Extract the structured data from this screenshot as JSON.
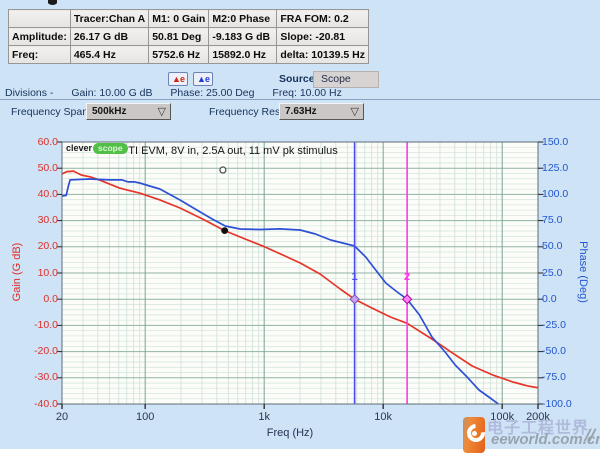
{
  "readout_table": {
    "header": [
      "",
      "Tracer:Chan A",
      "M1: 0 Gain",
      "M2:0 Phase",
      "FRA FOM: 0.2"
    ],
    "rows": [
      [
        "Amplitude:",
        "26.17 G dB",
        "50.81 Deg",
        "-9.183 G dB",
        "Slope: -20.81"
      ],
      [
        "Freq:",
        "465.4 Hz",
        "5752.6 Hz",
        "15892.0 Hz",
        "delta: 10139.5 Hz"
      ]
    ]
  },
  "toolbar": {
    "autoscale_gain": {
      "glyph": "▲e",
      "color": "#d42414"
    },
    "autoscale_phase": {
      "glyph": "▲e",
      "color": "#1f3fd0"
    },
    "source_label": "Source:",
    "source_value": "Scope"
  },
  "divisions": {
    "prefix": "Divisions -",
    "gain": "Gain: 10.00 G dB",
    "phase": "Phase: 25.00 Deg",
    "freq": "Freq: 10.00 Hz"
  },
  "controls": {
    "dropdown_icon": "▽",
    "freq_span": {
      "label": "Frequency Span",
      "value": "500kHz"
    },
    "freq_res": {
      "label": "Frequency Res",
      "value": "7.63Hz"
    }
  },
  "chart_data": {
    "type": "line",
    "title": "TI EVM, 8V in, 2.5A out, 11 mV pk stimulus",
    "logo": {
      "clever": "clever",
      "scope": "scope"
    },
    "x_scale": "log",
    "grid": true,
    "freq_axis": {
      "label": "Freq (Hz)",
      "min": 20,
      "max": 200000,
      "ticks": [
        {
          "f": 20,
          "label": "20"
        },
        {
          "f": 100,
          "label": "100"
        },
        {
          "f": 1000,
          "label": "1k"
        },
        {
          "f": 10000,
          "label": "10k"
        },
        {
          "f": 100000,
          "label": "100k"
        },
        {
          "f": 200000,
          "label": "200k"
        }
      ]
    },
    "gain_axis": {
      "label": "Gain (G dB)",
      "min": -40,
      "max": 60,
      "tick_step": 10,
      "minor_step": 2,
      "color": "#df2f28"
    },
    "phase_axis": {
      "label": "Phase (Deg)",
      "min": -100,
      "max": 150,
      "tick_step": 25,
      "color": "#2156cf"
    },
    "series": [
      {
        "name": "Gain",
        "axis": "gain",
        "color": "#e63529",
        "points": [
          [
            20,
            47.8
          ],
          [
            22,
            48.7
          ],
          [
            25,
            48.9
          ],
          [
            29,
            47.4
          ],
          [
            35,
            46.6
          ],
          [
            42,
            45.4
          ],
          [
            61,
            42.4
          ],
          [
            90,
            40.5
          ],
          [
            133,
            37.9
          ],
          [
            196,
            34.8
          ],
          [
            304,
            30.6
          ],
          [
            465.4,
            26.17
          ],
          [
            687,
            23.0
          ],
          [
            974,
            20.3
          ],
          [
            1497,
            16.5
          ],
          [
            2006,
            13.8
          ],
          [
            2950,
            9.6
          ],
          [
            4350,
            3.9
          ],
          [
            5752.6,
            0.0
          ],
          [
            7770,
            -3.0
          ],
          [
            11500,
            -6.8
          ],
          [
            15892,
            -9.183
          ],
          [
            25680,
            -15.2
          ],
          [
            38200,
            -20.5
          ],
          [
            56000,
            -25.5
          ],
          [
            83000,
            -28.9
          ],
          [
            123000,
            -31.6
          ],
          [
            164000,
            -33.1
          ],
          [
            200000,
            -33.8
          ]
        ]
      },
      {
        "name": "Phase",
        "axis": "phase",
        "color": "#2e50d5",
        "points": [
          [
            20,
            98.5
          ],
          [
            21.7,
            99.0
          ],
          [
            22.5,
            107.0
          ],
          [
            23.4,
            113.8
          ],
          [
            34,
            114.7
          ],
          [
            51,
            113.8
          ],
          [
            64,
            113.8
          ],
          [
            72,
            111.9
          ],
          [
            82,
            111.9
          ],
          [
            90,
            110.9
          ],
          [
            109,
            108.0
          ],
          [
            133,
            105.2
          ],
          [
            196,
            94.7
          ],
          [
            290,
            83.2
          ],
          [
            366,
            76.5
          ],
          [
            470,
            69.8
          ],
          [
            628,
            67.0
          ],
          [
            925,
            66.5
          ],
          [
            1362,
            67.1
          ],
          [
            2006,
            66.0
          ],
          [
            2694,
            62.2
          ],
          [
            3620,
            56.5
          ],
          [
            4570,
            53.6
          ],
          [
            5752.6,
            50.81
          ],
          [
            7130,
            40.3
          ],
          [
            8660,
            27.9
          ],
          [
            10520,
            15.5
          ],
          [
            13120,
            6.9
          ],
          [
            15892,
            0.0
          ],
          [
            20210,
            -15.1
          ],
          [
            25680,
            -36.0
          ],
          [
            33160,
            -50.4
          ],
          [
            40270,
            -62.8
          ],
          [
            50710,
            -74.2
          ],
          [
            63860,
            -86.6
          ],
          [
            79280,
            -94.3
          ],
          [
            92870,
            -100.0
          ]
        ]
      }
    ],
    "markers": [
      {
        "label": "1",
        "freq": 5752.6,
        "line_color": "#4a4af0",
        "label_color": "#2626dd",
        "point": {
          "gain": 0.0,
          "fill": "#c9a0ee",
          "stroke": "#7a50b4"
        }
      },
      {
        "label": "2",
        "freq": 15892.0,
        "line_color": "#ff38ee",
        "label_color": "#e populated",
        "point": {
          "gain": 0.0,
          "fill": "#ff80f4",
          "stroke": "#aa00a0"
        }
      }
    ],
    "tracer_dot": {
      "freq": 465.4,
      "gain": 26.17
    },
    "hover_circle": {
      "freq": 450,
      "gain": 49.3
    }
  },
  "watermark": {
    "cn": "电子工程世界",
    "en": "eeworld.com.cn",
    "slashes": "//"
  }
}
